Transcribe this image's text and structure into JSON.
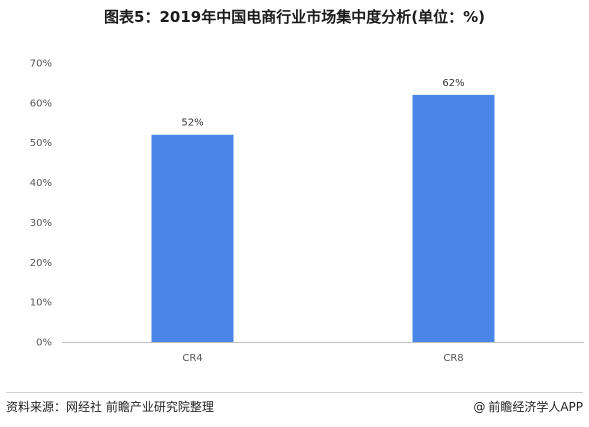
{
  "title": "图表5：2019年中国电商行业市场集中度分析(单位：%)",
  "footer": {
    "source": "资料来源：网经社 前瞻产业研究院整理",
    "brand": "前瞻经济学人APP",
    "brand_symbol": "@"
  },
  "chart_data": {
    "type": "bar",
    "categories": [
      "CR4",
      "CR8"
    ],
    "values": [
      52,
      62
    ],
    "data_labels": [
      "52%",
      "62%"
    ],
    "y_ticks": [
      "0%",
      "10%",
      "20%",
      "30%",
      "40%",
      "50%",
      "60%",
      "70%"
    ],
    "ylim": [
      0,
      70
    ],
    "bar_color": "#4a86e8",
    "grid": false,
    "title": "图表5：2019年中国电商行业市场集中度分析(单位：%)",
    "xlabel": "",
    "ylabel": ""
  }
}
